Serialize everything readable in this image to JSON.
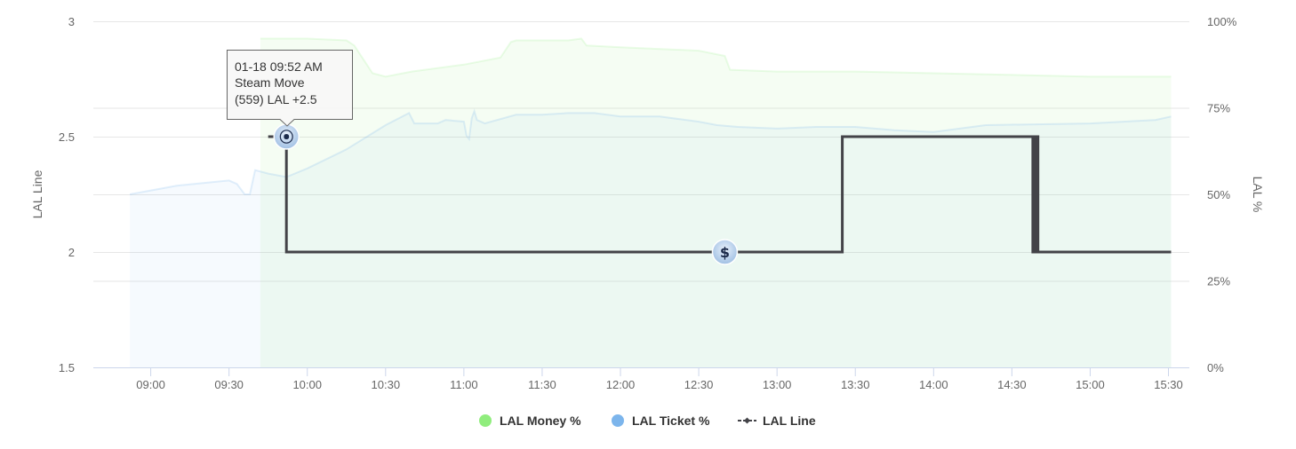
{
  "chart_data": {
    "type": "line",
    "x_axis": {
      "ticks": [
        "09:00",
        "09:30",
        "10:00",
        "10:30",
        "11:00",
        "11:30",
        "12:00",
        "12:30",
        "13:00",
        "13:30",
        "14:00",
        "14:30",
        "15:00",
        "15:30"
      ],
      "tick_minutes": [
        540,
        570,
        600,
        630,
        660,
        690,
        720,
        750,
        780,
        810,
        840,
        870,
        900,
        930
      ],
      "range_minutes": [
        518,
        938
      ]
    },
    "y_axis_left": {
      "title": "LAL Line",
      "range": [
        1.5,
        3
      ],
      "ticks": [
        "1.5",
        "2",
        "2.5",
        "3"
      ]
    },
    "y_axis_right": {
      "title": "LAL %",
      "range": [
        0,
        100
      ],
      "ticks": [
        "0%",
        "25%",
        "50%",
        "75%",
        "100%"
      ]
    },
    "grid": true,
    "legend_position": "bottom-center",
    "series": [
      {
        "name": "LAL Money %",
        "color": "#90ed7d",
        "type": "area",
        "axis": "right",
        "points": [
          [
            "09:42",
            95
          ],
          [
            "10:00",
            95
          ],
          [
            "10:15",
            94.5
          ],
          [
            "10:18",
            93
          ],
          [
            "10:25",
            85
          ],
          [
            "10:30",
            84
          ],
          [
            "10:40",
            85.5
          ],
          [
            "11:00",
            87.5
          ],
          [
            "11:14",
            89.5
          ],
          [
            "11:18",
            94
          ],
          [
            "11:20",
            94.5
          ],
          [
            "11:40",
            94.5
          ],
          [
            "11:45",
            95
          ],
          [
            "11:47",
            93
          ],
          [
            "12:00",
            92.5
          ],
          [
            "12:30",
            91.5
          ],
          [
            "12:40",
            90
          ],
          [
            "12:42",
            86
          ],
          [
            "13:00",
            85.5
          ],
          [
            "13:30",
            85.5
          ],
          [
            "14:00",
            85
          ],
          [
            "14:30",
            84.5
          ],
          [
            "15:00",
            84
          ],
          [
            "15:31",
            84
          ]
        ]
      },
      {
        "name": "LAL Ticket %",
        "color": "#7cb5ec",
        "type": "area",
        "axis": "right",
        "points": [
          [
            "08:52",
            50
          ],
          [
            "09:10",
            52.5
          ],
          [
            "09:30",
            54
          ],
          [
            "09:33",
            53
          ],
          [
            "09:36",
            50
          ],
          [
            "09:38",
            50
          ],
          [
            "09:40",
            57
          ],
          [
            "09:45",
            56
          ],
          [
            "09:52",
            55
          ],
          [
            "10:00",
            57.5
          ],
          [
            "10:15",
            63
          ],
          [
            "10:30",
            70
          ],
          [
            "10:39",
            73.5
          ],
          [
            "10:41",
            70.5
          ],
          [
            "10:50",
            70.5
          ],
          [
            "10:53",
            71.5
          ],
          [
            "11:00",
            71
          ],
          [
            "11:01",
            67
          ],
          [
            "11:02",
            66
          ],
          [
            "11:03",
            72
          ],
          [
            "11:04",
            74
          ],
          [
            "11:05",
            71.5
          ],
          [
            "11:08",
            70.5
          ],
          [
            "11:20",
            73
          ],
          [
            "11:30",
            73
          ],
          [
            "11:40",
            73.5
          ],
          [
            "11:50",
            73.5
          ],
          [
            "12:00",
            72.5
          ],
          [
            "12:15",
            72.5
          ],
          [
            "12:30",
            71
          ],
          [
            "12:37",
            70
          ],
          [
            "12:45",
            69.5
          ],
          [
            "13:00",
            69
          ],
          [
            "13:15",
            69.5
          ],
          [
            "13:30",
            69.5
          ],
          [
            "13:45",
            68.5
          ],
          [
            "14:00",
            68
          ],
          [
            "14:20",
            70
          ],
          [
            "15:00",
            70.5
          ],
          [
            "15:25",
            71.5
          ],
          [
            "15:31",
            72.5
          ]
        ]
      },
      {
        "name": "LAL Line",
        "color": "#434348",
        "type": "step",
        "axis": "left",
        "points": [
          [
            "09:45",
            2.5
          ],
          [
            "09:52",
            2.5
          ],
          [
            "09:52",
            2.0
          ],
          [
            "13:25",
            2.0
          ],
          [
            "13:25",
            2.5
          ],
          [
            "14:38",
            2.5
          ],
          [
            "14:38",
            2.0
          ],
          [
            "14:39",
            2.0
          ],
          [
            "14:39",
            2.5
          ],
          [
            "14:40",
            2.5
          ],
          [
            "14:40",
            2.0
          ],
          [
            "15:31",
            2.0
          ]
        ]
      }
    ],
    "annotations": [
      {
        "time": "09:52",
        "value": 2.5,
        "icon": "steam-move-icon",
        "glyph": "⦿"
      },
      {
        "time": "12:40",
        "value": 2.0,
        "icon": "dollar-icon",
        "glyph": "$"
      }
    ],
    "tooltip": {
      "lines": [
        "01-18 09:52 AM",
        "Steam Move",
        "(559) LAL +2.5"
      ]
    }
  }
}
